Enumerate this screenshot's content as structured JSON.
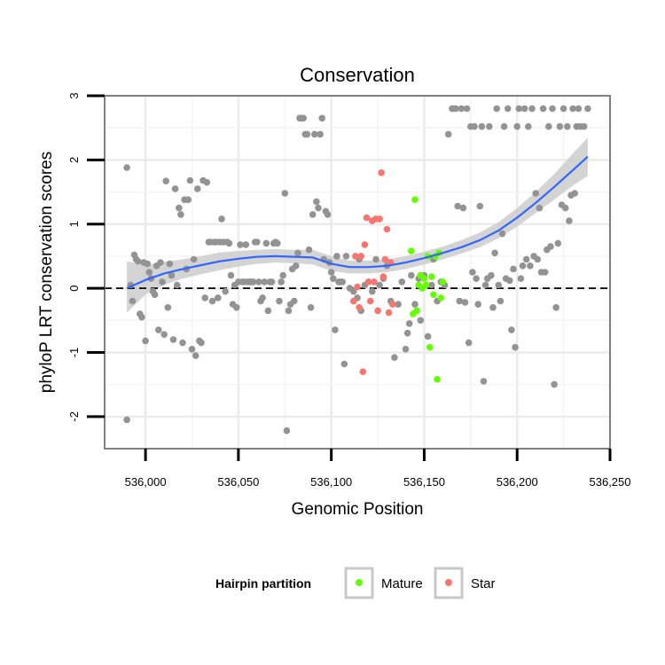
{
  "chart_data": {
    "type": "scatter",
    "title": "Conservation",
    "xlabel": "Genomic Position",
    "ylabel": "phyloP LRT conservation scores",
    "xlim": [
      535978,
      536250
    ],
    "ylim": [
      -2.5,
      3.0
    ],
    "x_ticks": [
      536000,
      536050,
      536100,
      536150,
      536200,
      536250
    ],
    "x_tick_labels": [
      "536,000",
      "536,050",
      "536,100",
      "536,150",
      "536,200",
      "536,250"
    ],
    "y_ticks": [
      -2,
      -1,
      0,
      1,
      2,
      3
    ],
    "y_tick_labels": [
      "-2",
      "-1",
      "0",
      "1",
      "2",
      "3"
    ],
    "reference_line": {
      "y": 0,
      "style": "dashed"
    },
    "grid": true,
    "legend": {
      "title": "Hairpin partition",
      "position": "bottom",
      "entries": [
        {
          "label": "Mature",
          "color": "#66ff00"
        },
        {
          "label": "Star",
          "color": "#f8766d"
        }
      ]
    },
    "colors": {
      "other": "#939393",
      "smooth_line": "#3366ff",
      "ribbon": "#cccccc"
    },
    "series": [
      {
        "group": "other",
        "points": [
          [
            535990,
            1.88
          ],
          [
            535990,
            -2.05
          ],
          [
            535992,
            0.05
          ],
          [
            535993,
            -0.2
          ],
          [
            535994,
            0.52
          ],
          [
            535995,
            0.45
          ],
          [
            535996,
            0.42
          ],
          [
            535997,
            -0.4
          ],
          [
            535998,
            -0.45
          ],
          [
            535999,
            0.4
          ],
          [
            536000,
            -0.82
          ],
          [
            536001,
            0.38
          ],
          [
            536002,
            0.25
          ],
          [
            536003,
            0.15
          ],
          [
            536004,
            -0.05
          ],
          [
            536005,
            -0.1
          ],
          [
            536006,
            0.35
          ],
          [
            536007,
            -0.65
          ],
          [
            536008,
            0.4
          ],
          [
            536009,
            0.1
          ],
          [
            536010,
            -0.72
          ],
          [
            536011,
            1.67
          ],
          [
            536012,
            -0.3
          ],
          [
            536013,
            0.38
          ],
          [
            536014,
            0.2
          ],
          [
            536015,
            -0.8
          ],
          [
            536016,
            1.55
          ],
          [
            536017,
            0.05
          ],
          [
            536018,
            1.25
          ],
          [
            536019,
            1.15
          ],
          [
            536020,
            -0.85
          ],
          [
            536021,
            1.38
          ],
          [
            536022,
            0.3
          ],
          [
            536023,
            1.38
          ],
          [
            536024,
            1.68
          ],
          [
            536025,
            -0.95
          ],
          [
            536026,
            0.45
          ],
          [
            536027,
            -1.05
          ],
          [
            536028,
            1.55
          ],
          [
            536029,
            -0.82
          ],
          [
            536030,
            -0.85
          ],
          [
            536031,
            1.68
          ],
          [
            536032,
            -0.15
          ],
          [
            536033,
            1.65
          ],
          [
            536034,
            0.72
          ],
          [
            536035,
            0.72
          ],
          [
            536036,
            -0.2
          ],
          [
            536037,
            0.72
          ],
          [
            536038,
            0.72
          ],
          [
            536039,
            -0.15
          ],
          [
            536040,
            0.72
          ],
          [
            536041,
            1.08
          ],
          [
            536042,
            0.72
          ],
          [
            536043,
            -0.05
          ],
          [
            536044,
            0.72
          ],
          [
            536045,
            0.7
          ],
          [
            536046,
            0.2
          ],
          [
            536047,
            -0.25
          ],
          [
            536048,
            0.05
          ],
          [
            536049,
            -0.3
          ],
          [
            536050,
            0.1
          ],
          [
            536051,
            0.68
          ],
          [
            536052,
            0.1
          ],
          [
            536053,
            0.1
          ],
          [
            536054,
            0.68
          ],
          [
            536055,
            0.1
          ],
          [
            536056,
            0.1
          ],
          [
            536057,
            0.1
          ],
          [
            536058,
            0.1
          ],
          [
            536059,
            0.72
          ],
          [
            536060,
            0.72
          ],
          [
            536061,
            0.1
          ],
          [
            536062,
            -0.2
          ],
          [
            536063,
            -0.15
          ],
          [
            536064,
            0.1
          ],
          [
            536065,
            0.7
          ],
          [
            536066,
            -0.35
          ],
          [
            536067,
            0.1
          ],
          [
            536068,
            0.1
          ],
          [
            536069,
            0.7
          ],
          [
            536070,
            0.72
          ],
          [
            536071,
            0.7
          ],
          [
            536072,
            -0.2
          ],
          [
            536073,
            0.1
          ],
          [
            536074,
            0.2
          ],
          [
            536075,
            1.48
          ],
          [
            536076,
            -2.22
          ],
          [
            536077,
            -0.35
          ],
          [
            536078,
            -0.25
          ],
          [
            536079,
            0.3
          ],
          [
            536080,
            -0.2
          ],
          [
            536081,
            0.35
          ],
          [
            536082,
            0.55
          ],
          [
            536083,
            2.65
          ],
          [
            536084,
            2.65
          ],
          [
            536085,
            2.65
          ],
          [
            536086,
            2.4
          ],
          [
            536087,
            2.4
          ],
          [
            536088,
            0.6
          ],
          [
            536089,
            -0.3
          ],
          [
            536090,
            1.15
          ],
          [
            536091,
            2.4
          ],
          [
            536092,
            1.35
          ],
          [
            536093,
            1.25
          ],
          [
            536094,
            2.4
          ],
          [
            536095,
            2.65
          ],
          [
            536096,
            0.45
          ],
          [
            536097,
            1.2
          ],
          [
            536098,
            1.15
          ],
          [
            536099,
            0.4
          ],
          [
            536100,
            0.25
          ],
          [
            536101,
            0.15
          ],
          [
            536102,
            -0.65
          ],
          [
            536103,
            0.5
          ],
          [
            536104,
            0.1
          ],
          [
            536105,
            0.1
          ],
          [
            536106,
            0.1
          ],
          [
            536107,
            -1.18
          ],
          [
            536108,
            0.5
          ],
          [
            536110,
            0.0
          ],
          [
            536112,
            -0.05
          ],
          [
            536114,
            -0.15
          ],
          [
            536115,
            0.45
          ],
          [
            536116,
            -0.35
          ],
          [
            536118,
            0.05
          ],
          [
            536120,
            0.1
          ],
          [
            536122,
            -0.05
          ],
          [
            536124,
            0.45
          ],
          [
            536126,
            0.05
          ],
          [
            536128,
            0.15
          ],
          [
            536130,
            0.35
          ],
          [
            536132,
            -0.2
          ],
          [
            536134,
            -1.08
          ],
          [
            536136,
            -0.25
          ],
          [
            536138,
            0.1
          ],
          [
            536140,
            -0.95
          ],
          [
            536141,
            -0.7
          ],
          [
            536142,
            -0.55
          ],
          [
            536143,
            0.2
          ],
          [
            536145,
            -0.25
          ],
          [
            536147,
            0.15
          ],
          [
            536148,
            -0.5
          ],
          [
            536150,
            0.2
          ],
          [
            536152,
            -0.75
          ],
          [
            536154,
            0.05
          ],
          [
            536155,
            0.45
          ],
          [
            536157,
            -0.2
          ],
          [
            536159,
            0.1
          ],
          [
            536161,
            0.05
          ],
          [
            536163,
            2.4
          ],
          [
            536165,
            2.8
          ],
          [
            536166,
            2.8
          ],
          [
            536167,
            2.8
          ],
          [
            536168,
            1.28
          ],
          [
            536169,
            -0.2
          ],
          [
            536170,
            2.8
          ],
          [
            536171,
            1.25
          ],
          [
            536172,
            -0.22
          ],
          [
            536173,
            2.8
          ],
          [
            536174,
            -0.85
          ],
          [
            536175,
            2.52
          ],
          [
            536176,
            0.25
          ],
          [
            536177,
            2.52
          ],
          [
            536178,
            0.15
          ],
          [
            536179,
            -0.25
          ],
          [
            536180,
            1.28
          ],
          [
            536181,
            2.52
          ],
          [
            536182,
            -1.45
          ],
          [
            536183,
            0.05
          ],
          [
            536184,
            0.15
          ],
          [
            536185,
            2.52
          ],
          [
            536186,
            0.2
          ],
          [
            536187,
            -0.3
          ],
          [
            536188,
            0.55
          ],
          [
            536189,
            2.8
          ],
          [
            536190,
            0.05
          ],
          [
            536191,
            -0.2
          ],
          [
            536192,
            0.85
          ],
          [
            536193,
            2.52
          ],
          [
            536194,
            0.15
          ],
          [
            536195,
            2.8
          ],
          [
            536196,
            0.12
          ],
          [
            536197,
            -0.65
          ],
          [
            536198,
            0.3
          ],
          [
            536199,
            -0.92
          ],
          [
            536200,
            2.52
          ],
          [
            536201,
            2.8
          ],
          [
            536202,
            0.15
          ],
          [
            536203,
            0.35
          ],
          [
            536204,
            2.8
          ],
          [
            536205,
            0.45
          ],
          [
            536206,
            2.52
          ],
          [
            536207,
            0.35
          ],
          [
            536208,
            2.8
          ],
          [
            536209,
            0.5
          ],
          [
            536210,
            1.48
          ],
          [
            536211,
            0.45
          ],
          [
            536212,
            1.25
          ],
          [
            536213,
            0.25
          ],
          [
            536214,
            2.8
          ],
          [
            536215,
            0.25
          ],
          [
            536216,
            0.6
          ],
          [
            536217,
            2.52
          ],
          [
            536218,
            0.65
          ],
          [
            536219,
            2.8
          ],
          [
            536220,
            -1.5
          ],
          [
            536221,
            -0.3
          ],
          [
            536222,
            0.7
          ],
          [
            536223,
            2.52
          ],
          [
            536224,
            1.3
          ],
          [
            536225,
            2.8
          ],
          [
            536226,
            1.25
          ],
          [
            536227,
            2.52
          ],
          [
            536228,
            1.05
          ],
          [
            536229,
            1.45
          ],
          [
            536230,
            2.8
          ],
          [
            536231,
            1.48
          ],
          [
            536232,
            2.52
          ],
          [
            536233,
            2.8
          ],
          [
            536234,
            2.52
          ],
          [
            536236,
            2.52
          ],
          [
            536238,
            2.8
          ]
        ]
      },
      {
        "group": "Mature",
        "name": "Mature",
        "points": [
          [
            536143,
            0.58
          ],
          [
            536144,
            -0.4
          ],
          [
            536145,
            1.38
          ],
          [
            536146,
            -0.35
          ],
          [
            536147,
            0.05
          ],
          [
            536148,
            0.2
          ],
          [
            536149,
            0.0
          ],
          [
            536150,
            0.15
          ],
          [
            536151,
            0.05
          ],
          [
            536152,
            0.5
          ],
          [
            536153,
            -0.92
          ],
          [
            536154,
            0.18
          ],
          [
            536155,
            -0.1
          ],
          [
            536156,
            0.5
          ],
          [
            536157,
            -1.42
          ],
          [
            536158,
            0.55
          ],
          [
            536159,
            -0.15
          ],
          [
            536160,
            0.1
          ]
        ]
      },
      {
        "group": "Star",
        "name": "Star",
        "points": [
          [
            536112,
            -0.2
          ],
          [
            536113,
            0.5
          ],
          [
            536114,
            0.02
          ],
          [
            536115,
            -0.3
          ],
          [
            536116,
            0.5
          ],
          [
            536117,
            -1.3
          ],
          [
            536118,
            0.68
          ],
          [
            536119,
            1.1
          ],
          [
            536120,
            0.1
          ],
          [
            536121,
            -0.2
          ],
          [
            536122,
            1.05
          ],
          [
            536123,
            0.1
          ],
          [
            536124,
            1.08
          ],
          [
            536125,
            -0.35
          ],
          [
            536126,
            1.08
          ],
          [
            536127,
            1.8
          ],
          [
            536128,
            0.18
          ],
          [
            536129,
            0.45
          ],
          [
            536130,
            0.92
          ],
          [
            536131,
            -0.38
          ],
          [
            536132,
            0.4
          ],
          [
            536133,
            -0.25
          ]
        ]
      }
    ],
    "smooth": {
      "x": [
        535990,
        536000,
        536010,
        536020,
        536030,
        536040,
        536050,
        536060,
        536070,
        536080,
        536090,
        536100,
        536110,
        536120,
        536130,
        536140,
        536150,
        536160,
        536170,
        536180,
        536190,
        536200,
        536210,
        536220,
        536230,
        536238
      ],
      "y": [
        0.0,
        0.13,
        0.23,
        0.3,
        0.36,
        0.42,
        0.46,
        0.49,
        0.5,
        0.49,
        0.48,
        0.38,
        0.33,
        0.33,
        0.35,
        0.4,
        0.47,
        0.55,
        0.64,
        0.75,
        0.9,
        1.1,
        1.33,
        1.58,
        1.84,
        2.05
      ],
      "lower": [
        -0.38,
        -0.1,
        0.05,
        0.15,
        0.22,
        0.28,
        0.34,
        0.38,
        0.4,
        0.39,
        0.37,
        0.27,
        0.23,
        0.23,
        0.25,
        0.3,
        0.37,
        0.45,
        0.54,
        0.64,
        0.78,
        0.96,
        1.17,
        1.38,
        1.6,
        1.75
      ],
      "upper": [
        0.42,
        0.36,
        0.41,
        0.45,
        0.5,
        0.56,
        0.58,
        0.6,
        0.61,
        0.6,
        0.6,
        0.5,
        0.43,
        0.43,
        0.45,
        0.5,
        0.57,
        0.65,
        0.75,
        0.87,
        1.03,
        1.25,
        1.5,
        1.78,
        2.1,
        2.35
      ]
    }
  }
}
